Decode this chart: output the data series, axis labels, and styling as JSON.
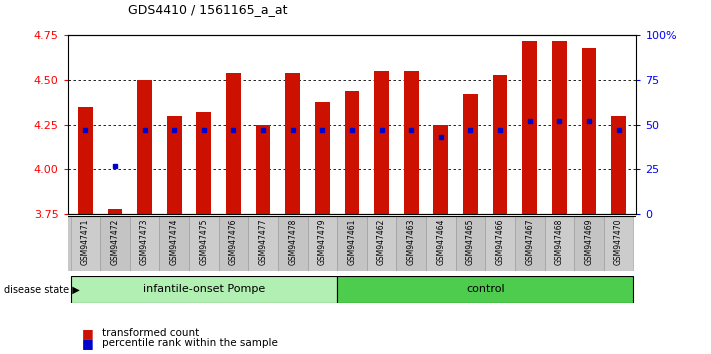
{
  "title": "GDS4410 / 1561165_a_at",
  "samples": [
    "GSM947471",
    "GSM947472",
    "GSM947473",
    "GSM947474",
    "GSM947475",
    "GSM947476",
    "GSM947477",
    "GSM947478",
    "GSM947479",
    "GSM947461",
    "GSM947462",
    "GSM947463",
    "GSM947464",
    "GSM947465",
    "GSM947466",
    "GSM947467",
    "GSM947468",
    "GSM947469",
    "GSM947470"
  ],
  "red_values": [
    4.35,
    3.78,
    4.5,
    4.3,
    4.32,
    4.54,
    4.25,
    4.54,
    4.38,
    4.44,
    4.55,
    4.55,
    4.25,
    4.42,
    4.53,
    4.72,
    4.72,
    4.68,
    4.3
  ],
  "blue_values": [
    4.22,
    4.02,
    4.22,
    4.22,
    4.22,
    4.22,
    4.22,
    4.22,
    4.22,
    4.22,
    4.22,
    4.22,
    4.18,
    4.22,
    4.22,
    4.27,
    4.27,
    4.27,
    4.22
  ],
  "group_labels": [
    "infantile-onset Pompe",
    "control"
  ],
  "group_boundaries": [
    0,
    9,
    19
  ],
  "group_colors_light": "#b2efb2",
  "group_colors_dark": "#4dcc4d",
  "ylim_left": [
    3.75,
    4.75
  ],
  "ylim_right": [
    0,
    100
  ],
  "yticks_left": [
    3.75,
    4.0,
    4.25,
    4.5,
    4.75
  ],
  "yticks_right": [
    0,
    25,
    50,
    75,
    100
  ],
  "bar_color": "#cc1100",
  "dot_color": "#0000cc",
  "grid_color": "#000000",
  "xticklabel_bg": "#c8c8c8"
}
